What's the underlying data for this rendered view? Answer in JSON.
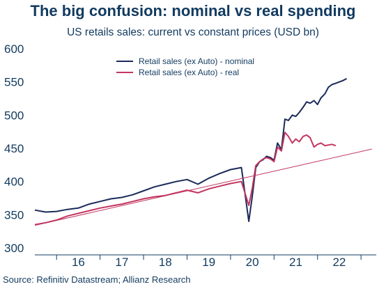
{
  "chart_data": {
    "type": "line",
    "title": "The big confusion: nominal vs real spending",
    "subtitle": "US retails sales: current vs constant prices (USD bn)",
    "source": "Source: Refinitiv Datastream; Allianz Research",
    "xlabel": "",
    "ylabel": "",
    "ylim": [
      300,
      600
    ],
    "yticks": [
      "300",
      "350",
      "400",
      "450",
      "500",
      "550",
      "600"
    ],
    "xticks": [
      "16",
      "17",
      "18",
      "19",
      "20",
      "21",
      "22"
    ],
    "legend_placement": "top-center",
    "grid": false,
    "series": [
      {
        "name": "Retail sales (ex Auto) - nominal",
        "color": "#1b2a5a",
        "x": [
          15.0,
          15.25,
          15.5,
          15.75,
          16.0,
          16.25,
          16.5,
          16.75,
          17.0,
          17.25,
          17.5,
          17.75,
          18.0,
          18.25,
          18.5,
          18.75,
          19.0,
          19.25,
          19.5,
          19.75,
          19.92,
          20.0,
          20.08,
          20.17,
          20.25,
          20.33,
          20.42,
          20.5,
          20.58,
          20.67,
          20.75,
          20.83,
          20.92,
          21.0,
          21.08,
          21.17,
          21.25,
          21.33,
          21.42,
          21.5,
          21.58,
          21.67,
          21.75,
          21.83,
          21.92,
          22.0,
          22.08,
          22.17
        ],
        "values": [
          357,
          354,
          355,
          358,
          360,
          366,
          370,
          374,
          376,
          380,
          386,
          392,
          396,
          400,
          403,
          396,
          405,
          412,
          418,
          421,
          340,
          378,
          421,
          430,
          433,
          438,
          436,
          432,
          458,
          448,
          494,
          492,
          500,
          498,
          504,
          512,
          520,
          518,
          522,
          516,
          526,
          532,
          542,
          546,
          548,
          550,
          552,
          555
        ],
        "y_note": ""
      },
      {
        "name": "Retail sales (ex Auto) - real",
        "color": "#c2355f",
        "x": [
          15.0,
          15.25,
          15.5,
          15.75,
          16.0,
          16.25,
          16.5,
          16.75,
          17.0,
          17.25,
          17.5,
          17.75,
          18.0,
          18.25,
          18.5,
          18.75,
          19.0,
          19.25,
          19.5,
          19.75,
          19.92,
          20.0,
          20.08,
          20.17,
          20.25,
          20.33,
          20.42,
          20.5,
          20.58,
          20.67,
          20.75,
          20.83,
          20.92,
          21.0,
          21.08,
          21.17,
          21.25,
          21.33,
          21.42,
          21.5,
          21.58,
          21.67,
          21.75,
          21.83,
          21.92
        ],
        "values": [
          335,
          338,
          342,
          348,
          352,
          356,
          360,
          363,
          366,
          370,
          374,
          377,
          379,
          383,
          387,
          383,
          389,
          393,
          397,
          400,
          364,
          390,
          424,
          430,
          434,
          436,
          434,
          430,
          452,
          446,
          474,
          468,
          458,
          464,
          460,
          468,
          470,
          466,
          452,
          456,
          458,
          454,
          455,
          456,
          454
        ],
        "y_note": ""
      },
      {
        "name": "",
        "color": "#c2355f",
        "x": [
          15.0,
          22.75
        ],
        "values": [
          334,
          449
        ],
        "y_note": ""
      }
    ]
  }
}
